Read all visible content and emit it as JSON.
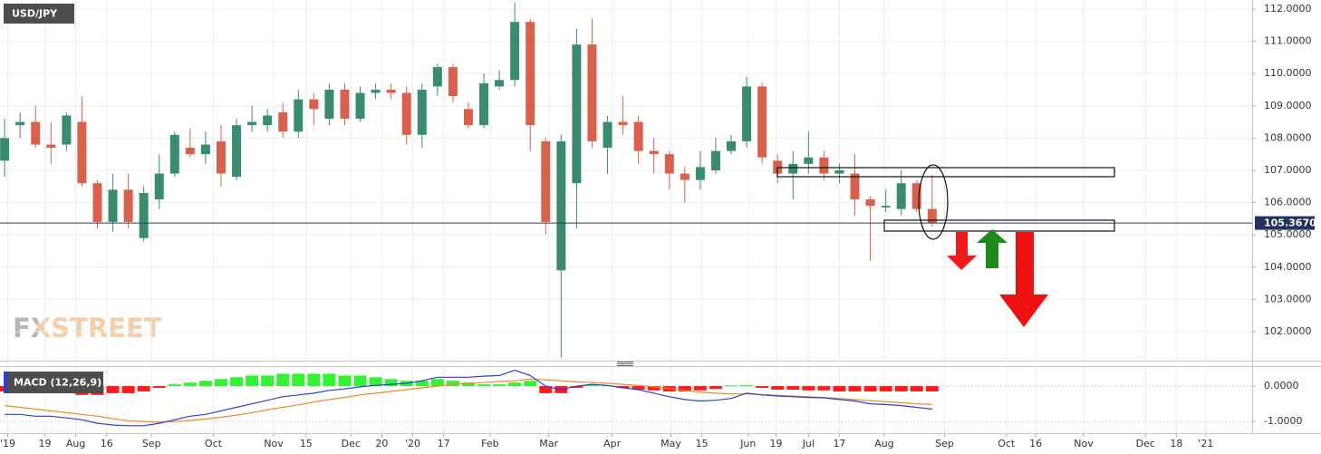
{
  "chart_data": [
    {
      "type": "candlestick",
      "title": "USD/JPY",
      "watermark": "FXSTREET",
      "up_color": "#3a8c6e",
      "down_color": "#d8614d",
      "open": [
        107.3,
        108.4,
        108.5,
        107.8,
        107.8,
        108.5,
        106.6,
        105.4,
        106.4,
        104.9,
        106.1,
        106.9,
        107.7,
        107.5,
        107.9,
        106.8,
        108.4,
        108.4,
        108.8,
        108.2,
        109.2,
        108.6,
        109.5,
        108.6,
        109.4,
        109.5,
        109.4,
        108.1,
        109.6,
        110.2,
        108.9,
        108.4,
        109.6,
        109.8,
        111.6,
        107.9,
        103.9,
        106.6,
        110.9,
        107.7,
        108.5,
        108.5,
        107.6,
        107.5,
        106.9,
        106.7,
        107.0,
        107.6,
        107.9,
        109.6,
        107.3,
        106.9,
        107.2,
        107.4,
        106.9,
        106.9,
        106.1,
        105.85,
        105.8,
        106.6,
        105.8
      ],
      "high": [
        108.6,
        108.8,
        109.0,
        108.5,
        108.8,
        109.3,
        106.7,
        106.9,
        106.9,
        106.5,
        107.5,
        108.2,
        108.3,
        108.2,
        108.4,
        108.6,
        109.0,
        108.9,
        109.1,
        109.5,
        109.4,
        109.7,
        109.7,
        109.6,
        109.7,
        109.7,
        109.6,
        109.7,
        110.3,
        110.3,
        109.1,
        110.0,
        110.1,
        112.2,
        111.7,
        108.0,
        108.1,
        111.4,
        111.7,
        108.7,
        109.3,
        108.7,
        108.0,
        107.6,
        107.1,
        107.6,
        108.0,
        108.1,
        109.9,
        109.7,
        107.5,
        107.6,
        108.2,
        107.6,
        107.2,
        107.5,
        106.2,
        106.4,
        107.0,
        106.7,
        106.85
      ],
      "low": [
        106.8,
        108.0,
        107.7,
        107.2,
        107.6,
        106.5,
        105.2,
        105.1,
        105.2,
        104.8,
        105.8,
        106.8,
        107.4,
        107.2,
        106.5,
        106.7,
        108.2,
        108.2,
        108.0,
        108.0,
        108.4,
        108.4,
        108.4,
        108.5,
        109.2,
        109.2,
        107.8,
        107.7,
        109.3,
        109.1,
        108.3,
        108.3,
        109.5,
        109.6,
        107.6,
        105.0,
        101.2,
        105.2,
        107.7,
        106.9,
        108.1,
        107.2,
        106.9,
        106.4,
        106.0,
        106.4,
        106.9,
        107.5,
        107.7,
        107.2,
        106.6,
        106.1,
        106.9,
        106.7,
        106.6,
        105.6,
        104.2,
        105.7,
        105.6,
        105.7,
        105.25
      ],
      "close": [
        108.0,
        108.5,
        107.8,
        107.7,
        108.7,
        106.6,
        105.4,
        106.4,
        105.4,
        106.3,
        106.9,
        108.1,
        107.5,
        107.8,
        106.9,
        108.4,
        108.5,
        108.7,
        108.2,
        109.2,
        108.9,
        109.5,
        108.6,
        109.4,
        109.5,
        109.4,
        108.1,
        109.5,
        110.2,
        109.3,
        108.4,
        109.7,
        109.8,
        111.6,
        108.4,
        105.4,
        107.9,
        110.9,
        107.9,
        108.5,
        108.4,
        107.6,
        107.5,
        106.9,
        106.7,
        107.1,
        107.6,
        107.9,
        109.6,
        107.4,
        106.9,
        107.2,
        107.4,
        106.9,
        107.0,
        106.1,
        105.9,
        105.9,
        106.6,
        105.8,
        105.37
      ],
      "last_price": {
        "value": 105.367,
        "label": "105.3670"
      },
      "xlim": [
        -0.3,
        80.7
      ],
      "ylim": [
        101.1,
        112.28
      ],
      "yticks": [
        {
          "value": 112,
          "label": "112.0000"
        },
        {
          "value": 111,
          "label": "111.0000"
        },
        {
          "value": 110,
          "label": "110.0000"
        },
        {
          "value": 109,
          "label": "109.0000"
        },
        {
          "value": 108,
          "label": "108.0000"
        },
        {
          "value": 107,
          "label": "107.0000"
        },
        {
          "value": 106,
          "label": "106.0000"
        },
        {
          "value": 105,
          "label": "105.0000"
        },
        {
          "value": 104,
          "label": "104.0000"
        },
        {
          "value": 103,
          "label": "103.0000"
        },
        {
          "value": 102,
          "label": "102.0000"
        }
      ],
      "grid": true
    },
    {
      "type": "macd",
      "title": "MACD (12,26,9)",
      "histogram": {
        "up_color": "#33f233",
        "down_color": "#ff1a1a",
        "values": [
          -0.15,
          -0.15,
          -0.2,
          -0.2,
          -0.2,
          -0.25,
          -0.25,
          -0.2,
          -0.2,
          -0.15,
          -0.05,
          0.05,
          0.1,
          0.15,
          0.2,
          0.25,
          0.3,
          0.3,
          0.35,
          0.35,
          0.35,
          0.35,
          0.3,
          0.3,
          0.25,
          0.2,
          0.15,
          0.15,
          0.2,
          0.15,
          0.1,
          0.05,
          0.05,
          0.1,
          0.15,
          -0.2,
          -0.2,
          -0.05,
          0.05,
          0.02,
          -0.05,
          -0.1,
          -0.12,
          -0.15,
          -0.15,
          -0.12,
          -0.08,
          0.02,
          0.03,
          -0.05,
          -0.1,
          -0.1,
          -0.12,
          -0.12,
          -0.15,
          -0.15,
          -0.15,
          -0.15,
          -0.15,
          -0.15,
          -0.15
        ]
      },
      "macd": {
        "color": "#2b3fd6",
        "values": [
          -0.8,
          -0.8,
          -0.85,
          -0.85,
          -0.9,
          -0.95,
          -1.05,
          -1.1,
          -1.12,
          -1.12,
          -1.05,
          -0.95,
          -0.85,
          -0.8,
          -0.7,
          -0.6,
          -0.5,
          -0.4,
          -0.3,
          -0.25,
          -0.2,
          -0.12,
          -0.08,
          -0.02,
          0.02,
          0.05,
          0.08,
          0.15,
          0.25,
          0.25,
          0.25,
          0.28,
          0.3,
          0.45,
          0.3,
          0.0,
          -0.1,
          0.0,
          0.05,
          0.02,
          -0.05,
          -0.1,
          -0.2,
          -0.3,
          -0.38,
          -0.42,
          -0.4,
          -0.35,
          -0.2,
          -0.25,
          -0.28,
          -0.3,
          -0.32,
          -0.33,
          -0.38,
          -0.42,
          -0.5,
          -0.52,
          -0.55,
          -0.6,
          -0.65
        ]
      },
      "signal": {
        "color": "#f08a24",
        "values": [
          -0.55,
          -0.6,
          -0.65,
          -0.7,
          -0.75,
          -0.8,
          -0.85,
          -0.92,
          -0.98,
          -1.0,
          -1.02,
          -1.0,
          -0.97,
          -0.93,
          -0.88,
          -0.82,
          -0.75,
          -0.67,
          -0.6,
          -0.53,
          -0.45,
          -0.38,
          -0.32,
          -0.25,
          -0.2,
          -0.15,
          -0.1,
          -0.05,
          0.0,
          0.05,
          0.08,
          0.1,
          0.13,
          0.15,
          0.2,
          0.18,
          0.15,
          0.12,
          0.1,
          0.08,
          0.05,
          0.02,
          -0.02,
          -0.07,
          -0.12,
          -0.17,
          -0.2,
          -0.22,
          -0.22,
          -0.24,
          -0.26,
          -0.28,
          -0.3,
          -0.32,
          -0.35,
          -0.38,
          -0.41,
          -0.44,
          -0.47,
          -0.5,
          -0.52
        ]
      },
      "xlim": [
        -0.3,
        80.7
      ],
      "ylim": [
        -1.33,
        0.54
      ],
      "yticks": [
        {
          "value": 0,
          "label": "0.0000"
        },
        {
          "value": -1,
          "label": "-1.0000"
        }
      ],
      "xticks": [
        {
          "value": 0.2,
          "label": "'19"
        },
        {
          "value": 2.6,
          "label": "19"
        },
        {
          "value": 4.6,
          "label": "Aug"
        },
        {
          "value": 6.6,
          "label": "16"
        },
        {
          "value": 9.5,
          "label": "Sep"
        },
        {
          "value": 13.5,
          "label": "Oct"
        },
        {
          "value": 17.4,
          "label": "Nov"
        },
        {
          "value": 19.5,
          "label": "15"
        },
        {
          "value": 22.4,
          "label": "Dec"
        },
        {
          "value": 24.4,
          "label": "20"
        },
        {
          "value": 26.4,
          "label": "'20"
        },
        {
          "value": 28.4,
          "label": "17"
        },
        {
          "value": 31.4,
          "label": "Feb"
        },
        {
          "value": 35.2,
          "label": "Mar"
        },
        {
          "value": 39.3,
          "label": "Apr"
        },
        {
          "value": 43.1,
          "label": "May"
        },
        {
          "value": 45.1,
          "label": "15"
        },
        {
          "value": 48.1,
          "label": "Jun"
        },
        {
          "value": 49.9,
          "label": "19"
        },
        {
          "value": 52.0,
          "label": "Jul"
        },
        {
          "value": 54.0,
          "label": "17"
        },
        {
          "value": 56.9,
          "label": "Aug"
        },
        {
          "value": 60.8,
          "label": "Sep"
        },
        {
          "value": 64.8,
          "label": "Oct"
        },
        {
          "value": 66.7,
          "label": "16"
        },
        {
          "value": 69.8,
          "label": "Nov"
        },
        {
          "value": 73.8,
          "label": "Dec"
        },
        {
          "value": 75.8,
          "label": "18"
        },
        {
          "value": 77.7,
          "label": "'21"
        }
      ],
      "grid": true
    }
  ]
}
